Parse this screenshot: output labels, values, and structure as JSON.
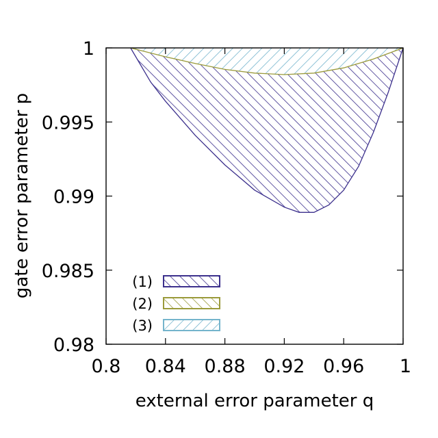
{
  "chart_data": {
    "type": "area",
    "xlabel": "external error parameter q",
    "ylabel": "gate error parameter p",
    "xlim": [
      0.8,
      1.0
    ],
    "ylim": [
      0.98,
      1.0
    ],
    "xticks": [
      "0.8",
      "0.84",
      "0.88",
      "0.92",
      "0.96",
      "1"
    ],
    "xtick_values": [
      0.8,
      0.84,
      0.88,
      0.92,
      0.96,
      1.0
    ],
    "yticks": [
      "0.98",
      "0.985",
      "0.99",
      "0.995",
      "1"
    ],
    "ytick_values": [
      0.98,
      0.985,
      0.99,
      0.995,
      1.0
    ],
    "grid": false,
    "legend_position": "bottom-left",
    "series": [
      {
        "name": "(1)",
        "color": "#3b2f8c",
        "pattern": "hatch-forward",
        "upper_x": [
          0.8165,
          0.84,
          0.86,
          0.88,
          0.9,
          0.92,
          0.94,
          0.96,
          0.98,
          1.0
        ],
        "upper_y": [
          1.0,
          0.9994,
          0.99895,
          0.99855,
          0.9983,
          0.9982,
          0.9983,
          0.99865,
          0.99925,
          1.0
        ],
        "lower_x": [
          0.8165,
          0.83,
          0.84,
          0.86,
          0.88,
          0.9,
          0.92,
          0.93,
          0.94,
          0.95,
          0.96,
          0.97,
          0.98,
          0.99,
          1.0
        ],
        "lower_y": [
          1.0,
          0.9977,
          0.9964,
          0.9941,
          0.9921,
          0.9904,
          0.98925,
          0.9889,
          0.9889,
          0.9894,
          0.9904,
          0.992,
          0.9943,
          0.997,
          1.0
        ]
      },
      {
        "name": "(2)",
        "color": "#9a9a3a",
        "pattern": "hatch-forward",
        "curve_x": [
          0.8165,
          0.84,
          0.86,
          0.88,
          0.9,
          0.92,
          0.94,
          0.96,
          0.98,
          1.0
        ],
        "curve_y": [
          1.0,
          0.9994,
          0.99895,
          0.99855,
          0.9983,
          0.9982,
          0.9983,
          0.99865,
          0.99925,
          1.0
        ]
      },
      {
        "name": "(3)",
        "color": "#74b4cc",
        "pattern": "hatch-backward",
        "lower_x": [
          0.8165,
          0.84,
          0.86,
          0.88,
          0.9,
          0.92,
          0.94,
          0.96,
          0.98,
          1.0
        ],
        "lower_y": [
          1.0,
          0.9994,
          0.99895,
          0.99855,
          0.9983,
          0.9982,
          0.9983,
          0.99865,
          0.99925,
          1.0
        ],
        "upper_y": 1.0
      }
    ]
  }
}
